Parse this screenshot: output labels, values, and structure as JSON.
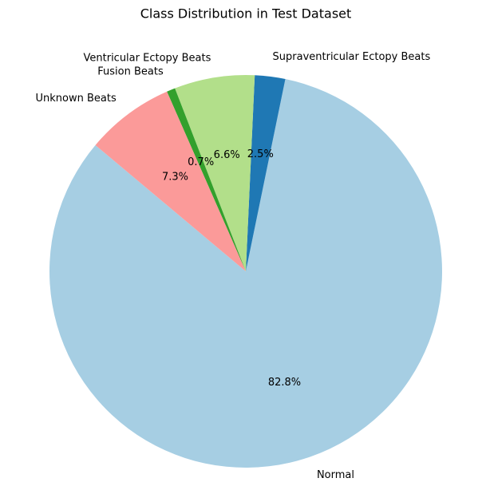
{
  "chart_data": {
    "type": "pie",
    "title": "Class Distribution in Test Dataset",
    "categories": [
      "Normal",
      "Supraventricular Ectopy Beats",
      "Ventricular Ectopy Beats",
      "Fusion Beats",
      "Unknown Beats"
    ],
    "values": [
      82.8,
      2.5,
      6.6,
      0.7,
      7.3
    ],
    "value_labels": [
      "82.8%",
      "2.5%",
      "6.6%",
      "0.7%",
      "7.3%"
    ],
    "colors": [
      "#a6cee3",
      "#1f78b4",
      "#b2df8a",
      "#33a02c",
      "#fb9a99"
    ]
  }
}
